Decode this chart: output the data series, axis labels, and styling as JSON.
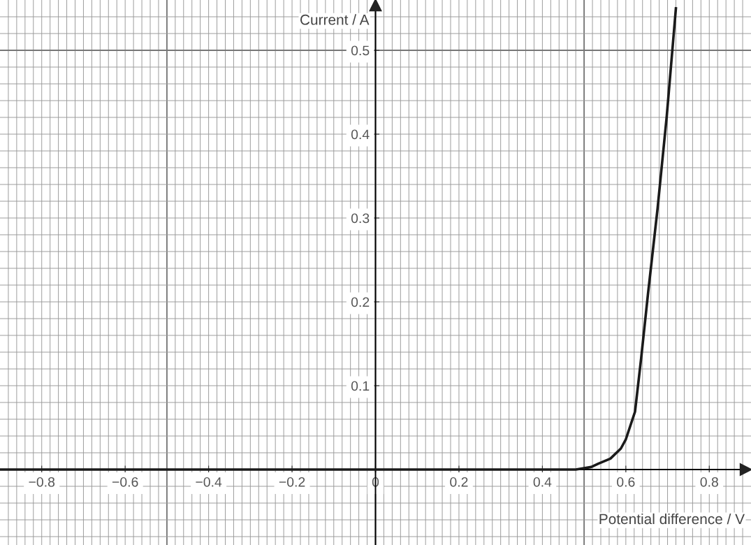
{
  "chart_data": {
    "type": "line",
    "xlabel": "Potential difference / V",
    "ylabel": "Current / A",
    "x": [
      -0.9,
      0.0,
      0.48,
      0.517,
      0.534,
      0.563,
      0.588,
      0.6,
      0.622,
      0.637,
      0.653,
      0.676,
      0.698,
      0.72
    ],
    "series": [
      {
        "color": "#1a1a1a",
        "values": [
          0,
          0,
          0,
          0.003,
          0.007,
          0.013,
          0.025,
          0.036,
          0.069,
          0.134,
          0.209,
          0.311,
          0.421,
          0.55
        ]
      }
    ],
    "xlim": [
      -0.9,
      0.9
    ],
    "ylim": [
      -0.09,
      0.56
    ],
    "xticks": [
      {
        "value": -0.8,
        "label": "−0.8"
      },
      {
        "value": -0.6,
        "label": "−0.6"
      },
      {
        "value": -0.4,
        "label": "−0.4"
      },
      {
        "value": -0.2,
        "label": "−0.2"
      },
      0,
      0.2,
      0.4,
      0.6,
      0.8
    ],
    "yticks": [
      0.1,
      0.2,
      0.3,
      0.4,
      0.5
    ],
    "grid": true,
    "marker": "none",
    "line_style": "solid",
    "legend": false
  }
}
